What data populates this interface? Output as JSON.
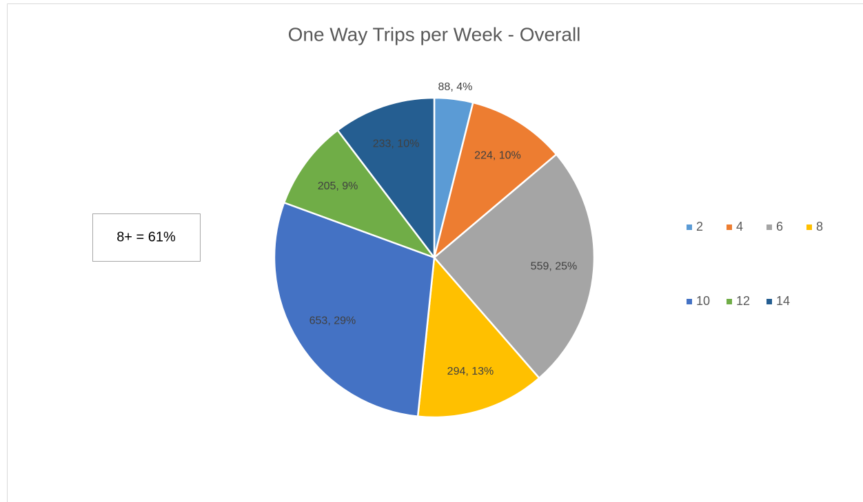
{
  "chart_data": {
    "type": "pie",
    "title": "One Way Trips per Week - Overall",
    "categories": [
      "2",
      "4",
      "6",
      "8",
      "10",
      "12",
      "14"
    ],
    "values": [
      88,
      224,
      559,
      294,
      653,
      205,
      233
    ],
    "value_labels": [
      "88, 4%",
      "224, 10%",
      "559, 25%",
      "294, 13%",
      "653, 29%",
      "205, 9%",
      "233, 10%"
    ],
    "colors": [
      "#5b9bd5",
      "#ed7d31",
      "#a5a5a5",
      "#ffc000",
      "#4472c4",
      "#70ad47",
      "#255e91"
    ],
    "legend": "right",
    "annotation": "8+ = 61%"
  }
}
